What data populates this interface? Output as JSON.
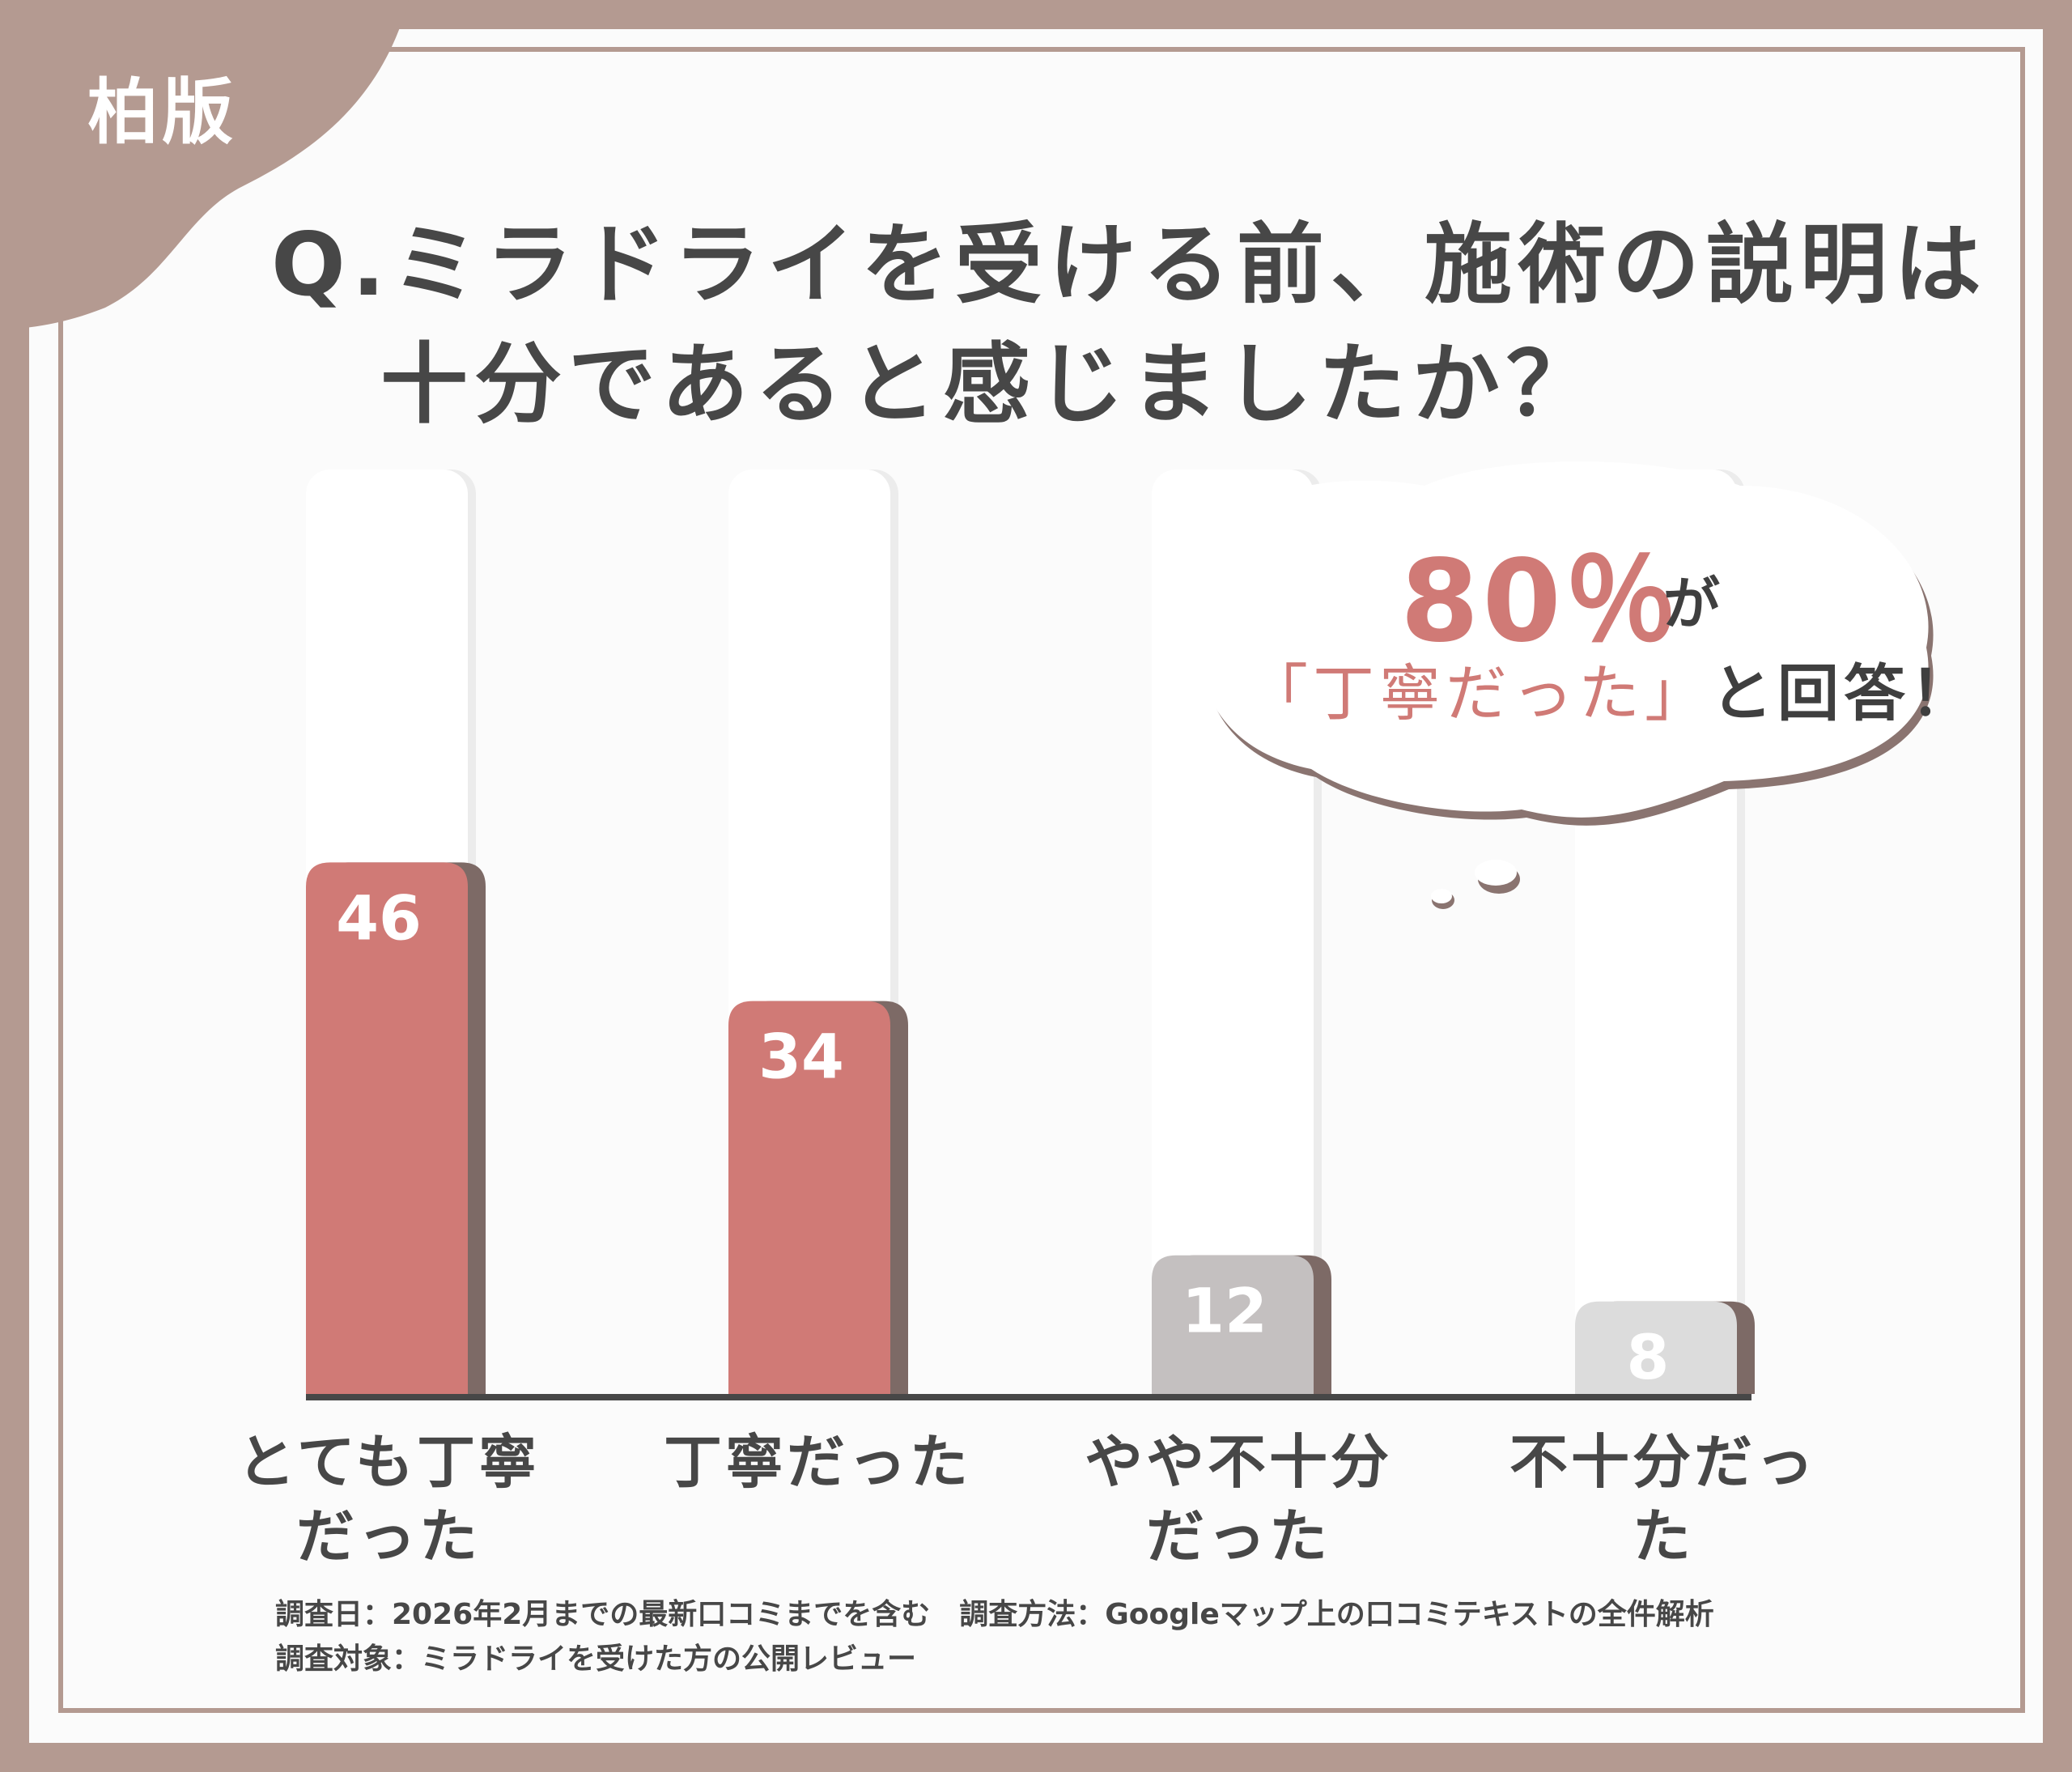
{
  "badge": {
    "label": "柏版"
  },
  "title": {
    "line1": "Q.ミラドライを受ける前、施術の説明は",
    "line2": "十分であると感じましたか？"
  },
  "callout": {
    "percent": "80％",
    "suffix": "が",
    "highlight": "「丁寧だった」",
    "rest": "と回答！"
  },
  "colors": {
    "frame": "#b49a91",
    "positive_bar": "#d07a76",
    "neutral_bar": "#c4c0c0",
    "negative_bar": "#dcdcdc",
    "text": "#474747"
  },
  "chart_data": {
    "type": "bar",
    "categories": [
      "とても丁寧\nだった",
      "丁寧だった",
      "やや不十分\nだった",
      "不十分だった"
    ],
    "values": [
      46,
      34,
      12,
      8
    ],
    "bar_colors": [
      "#d07a76",
      "#d07a76",
      "#c4c0c0",
      "#dcdcdc"
    ],
    "title": "",
    "xlabel": "",
    "ylabel": "",
    "ylim": [
      0,
      100
    ],
    "grid": false,
    "legend": "none",
    "data_labels": true
  },
  "notes": {
    "line1": "調査日：2026年2月までの最新口コミまでを含む　調査方法：Googleマップ上の口コミテキストの全件解析",
    "line2": "調査対象：ミラドライを受けた方の公開レビュー"
  }
}
